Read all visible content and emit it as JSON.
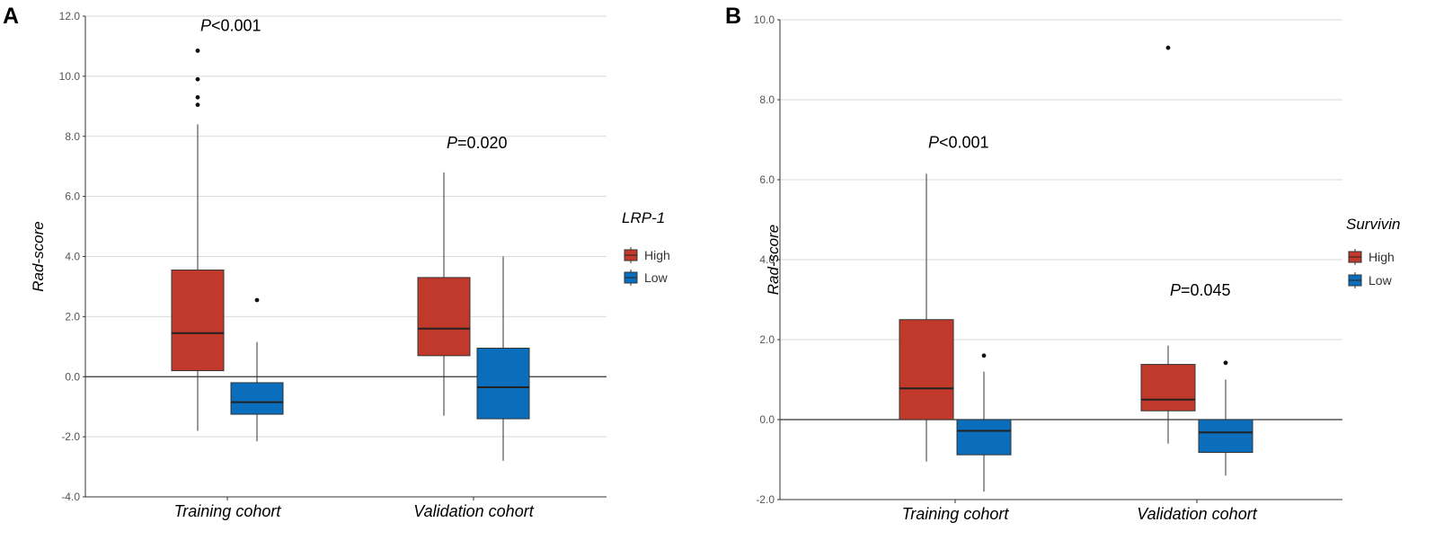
{
  "colors": {
    "high": "#C0392B",
    "low": "#0A6EBD",
    "grid": "#D9D9D9",
    "axis": "#333333",
    "median": "#222222"
  },
  "chart_data": [
    {
      "type": "box",
      "panel_letter": "A",
      "ylabel": "Rad-score",
      "ylim": [
        -4,
        12
      ],
      "yticks": [
        -4,
        -2,
        0,
        2,
        4,
        6,
        8,
        10,
        12
      ],
      "ytick_labels": [
        "-4.0",
        "-2.0",
        "0.0",
        "2.0",
        "4.0",
        "6.0",
        "8.0",
        "10.0",
        "12.0"
      ],
      "categories": [
        "Training cohort",
        "Validation cohort"
      ],
      "legend": {
        "title": "LRP-1",
        "entries": [
          "High",
          "Low"
        ]
      },
      "series": [
        {
          "name": "High",
          "boxes": [
            {
              "whisker_low": -1.8,
              "q1": 0.2,
              "median": 1.45,
              "q3": 3.55,
              "whisker_high": 8.4,
              "outliers": [
                9.05,
                9.3,
                9.9,
                10.85
              ]
            },
            {
              "whisker_low": -1.3,
              "q1": 0.7,
              "median": 1.6,
              "q3": 3.3,
              "whisker_high": 6.8,
              "outliers": []
            }
          ]
        },
        {
          "name": "Low",
          "boxes": [
            {
              "whisker_low": -2.15,
              "q1": -1.25,
              "median": -0.85,
              "q3": -0.2,
              "whisker_high": 1.15,
              "outliers": [
                2.55
              ]
            },
            {
              "whisker_low": -2.8,
              "q1": -1.4,
              "median": -0.35,
              "q3": 0.95,
              "whisker_high": 4.0,
              "outliers": []
            }
          ]
        }
      ],
      "annotations": [
        {
          "category_index": 0,
          "p_symbol": "P",
          "text": "<0.001",
          "y": 11.5
        },
        {
          "category_index": 1,
          "p_symbol": "P",
          "text": "=0.020",
          "y": 7.6
        }
      ]
    },
    {
      "type": "box",
      "panel_letter": "B",
      "ylabel": "Rad-score",
      "ylim": [
        -2,
        10
      ],
      "yticks": [
        -2,
        0,
        2,
        4,
        6,
        8,
        10
      ],
      "ytick_labels": [
        "-2.0",
        "0.0",
        "2.0",
        "4.0",
        "6.0",
        "8.0",
        "10.0"
      ],
      "categories": [
        "Training cohort",
        "Validation cohort"
      ],
      "legend": {
        "title": "Survivin",
        "entries": [
          "High",
          "Low"
        ]
      },
      "series": [
        {
          "name": "High",
          "boxes": [
            {
              "whisker_low": -1.05,
              "q1": 0.0,
              "median": 0.78,
              "q3": 2.5,
              "whisker_high": 6.15,
              "outliers": []
            },
            {
              "whisker_low": -0.6,
              "q1": 0.22,
              "median": 0.5,
              "q3": 1.38,
              "whisker_high": 1.85,
              "outliers": [
                9.3
              ]
            }
          ]
        },
        {
          "name": "Low",
          "boxes": [
            {
              "whisker_low": -1.8,
              "q1": -0.88,
              "median": -0.28,
              "q3": 0.0,
              "whisker_high": 1.2,
              "outliers": [
                1.6
              ]
            },
            {
              "whisker_low": -1.4,
              "q1": -0.82,
              "median": -0.32,
              "q3": 0.0,
              "whisker_high": 1.0,
              "outliers": [
                1.42
              ]
            }
          ]
        }
      ],
      "annotations": [
        {
          "category_index": 0,
          "p_symbol": "P",
          "text": "<0.001",
          "y": 6.8
        },
        {
          "category_index": 1,
          "p_symbol": "P",
          "text": "=0.045",
          "y": 3.1
        }
      ]
    }
  ]
}
